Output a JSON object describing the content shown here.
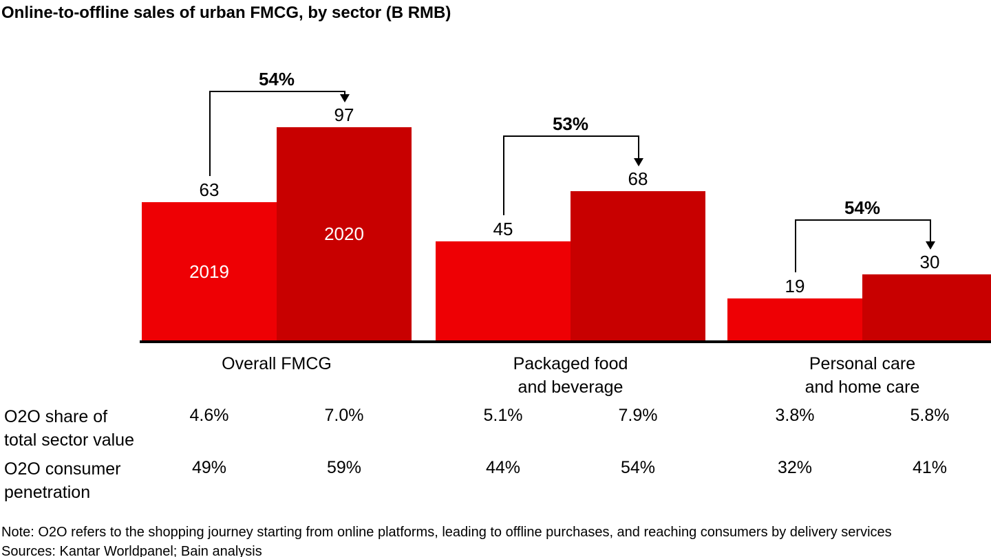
{
  "chart_data": {
    "type": "bar",
    "title": "Online-to-offline sales of urban FMCG, by sector (B RMB)",
    "unit": "B RMB",
    "categories": [
      "Overall FMCG",
      "Packaged food and beverage",
      "Personal care and home care"
    ],
    "category_lines": [
      [
        "Overall FMCG"
      ],
      [
        "Packaged food",
        "and beverage"
      ],
      [
        "Personal care",
        "and home care"
      ]
    ],
    "series": [
      {
        "name": "2019",
        "values": [
          63,
          45,
          19
        ]
      },
      {
        "name": "2020",
        "values": [
          97,
          68,
          30
        ]
      }
    ],
    "growth_labels": [
      "54%",
      "53%",
      "54%"
    ],
    "year_labels_in_bars_group": 0,
    "xlabel": "",
    "ylabel": "",
    "ylim": [
      0,
      100
    ],
    "grid": false,
    "legend_position": "in-bar (first group only)",
    "colors": {
      "2019": "#ee0004",
      "2020": "#c80000",
      "axis": "#000000"
    }
  },
  "table": {
    "rows": [
      {
        "label_lines": [
          "O2O share of",
          "total sector value"
        ],
        "values": [
          "4.6%",
          "7.0%",
          "5.1%",
          "7.9%",
          "3.8%",
          "5.8%"
        ]
      },
      {
        "label_lines": [
          "O2O consumer",
          "penetration"
        ],
        "values": [
          "49%",
          "59%",
          "44%",
          "54%",
          "32%",
          "41%"
        ]
      }
    ]
  },
  "footnotes": {
    "note": "Note: O2O refers to the shopping journey starting from online platforms, leading to offline purchases, and reaching consumers by delivery services",
    "sources": "Sources: Kantar Worldpanel; Bain analysis"
  }
}
